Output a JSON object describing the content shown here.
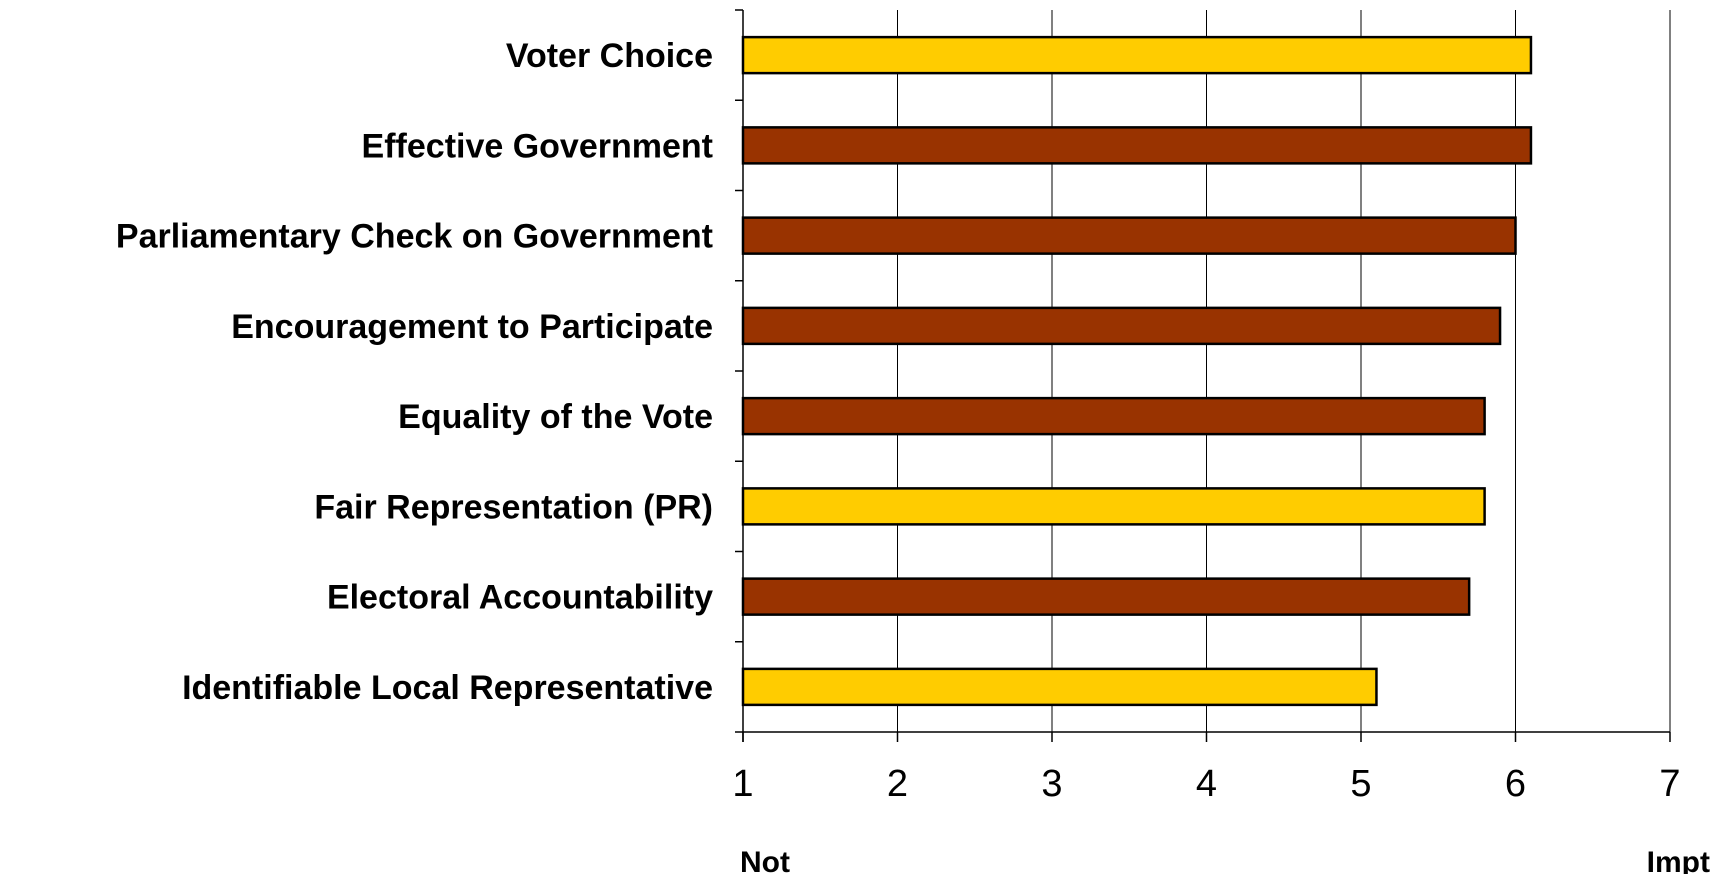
{
  "chart_data": {
    "type": "bar",
    "orientation": "horizontal",
    "categories": [
      "Voter Choice",
      "Effective Government",
      "Parliamentary Check on Government",
      "Encouragement to Participate",
      "Equality of the Vote",
      "Fair Representation (PR)",
      "Electoral Accountability",
      "Identifiable Local Representative"
    ],
    "values": [
      6.1,
      6.1,
      6.0,
      5.9,
      5.8,
      5.8,
      5.7,
      5.1
    ],
    "bar_colors": [
      "#FFCC00",
      "#993300",
      "#993300",
      "#993300",
      "#993300",
      "#FFCC00",
      "#993300",
      "#FFCC00"
    ],
    "xlim": [
      1,
      7
    ],
    "xticks": [
      "1",
      "2",
      "3",
      "4",
      "5",
      "6",
      "7"
    ],
    "x_end_labels": {
      "low": "Not",
      "high": "Impt"
    },
    "grid": "vertical",
    "legend": "none"
  }
}
